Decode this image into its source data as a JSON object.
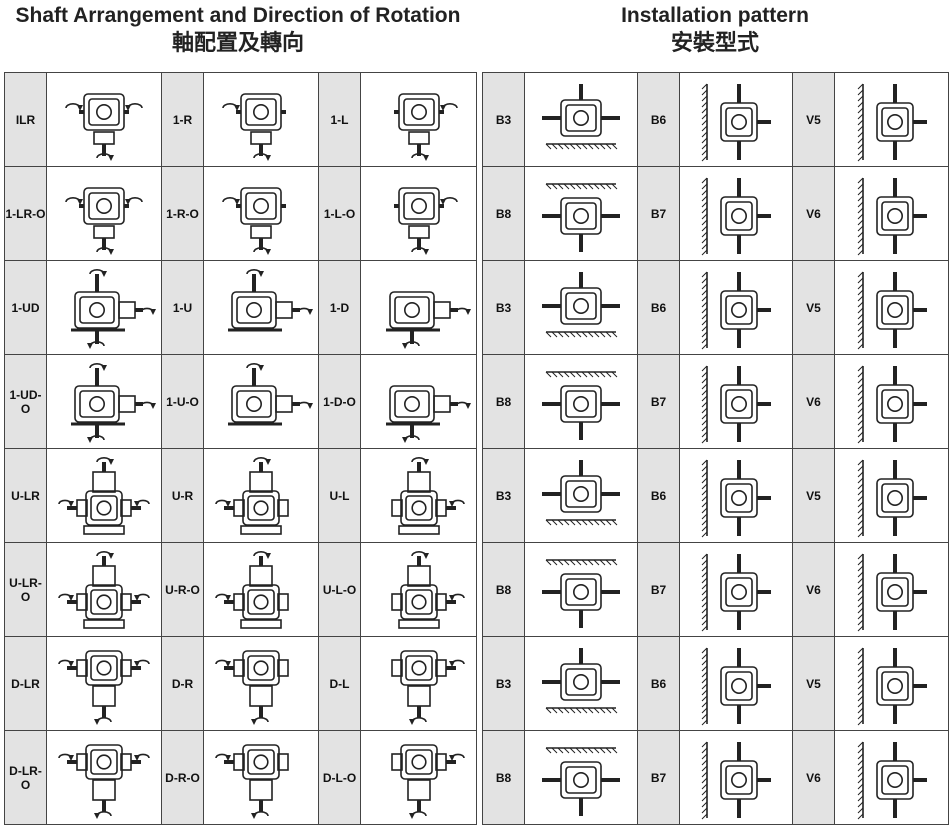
{
  "left": {
    "title_en": "Shaft Arrangement and Direction of Rotation",
    "title_zh": "軸配置及轉向",
    "rows": [
      [
        {
          "label": "ILR",
          "icon": "gearbox-rot-icon",
          "v": "a"
        },
        {
          "label": "1-R",
          "icon": "gearbox-rot-icon",
          "v": "b"
        },
        {
          "label": "1-L",
          "icon": "gearbox-rot-icon",
          "v": "c"
        }
      ],
      [
        {
          "label": "1-LR-O",
          "icon": "gearbox-rot-icon",
          "v": "a"
        },
        {
          "label": "1-R-O",
          "icon": "gearbox-rot-icon",
          "v": "b"
        },
        {
          "label": "1-L-O",
          "icon": "gearbox-rot-icon",
          "v": "c"
        }
      ],
      [
        {
          "label": "1-UD",
          "icon": "gearbox-side-rot-icon",
          "v": "a"
        },
        {
          "label": "1-U",
          "icon": "gearbox-side-rot-icon",
          "v": "b"
        },
        {
          "label": "1-D",
          "icon": "gearbox-side-rot-icon",
          "v": "c"
        }
      ],
      [
        {
          "label": "1-UD-O",
          "icon": "gearbox-side-rot-icon",
          "v": "a"
        },
        {
          "label": "1-U-O",
          "icon": "gearbox-side-rot-icon",
          "v": "b"
        },
        {
          "label": "1-D-O",
          "icon": "gearbox-side-rot-icon",
          "v": "c"
        }
      ],
      [
        {
          "label": "U-LR",
          "icon": "gearbox-tower-rot-icon",
          "v": "a"
        },
        {
          "label": "U-R",
          "icon": "gearbox-tower-rot-icon",
          "v": "b"
        },
        {
          "label": "U-L",
          "icon": "gearbox-tower-rot-icon",
          "v": "c"
        }
      ],
      [
        {
          "label": "U-LR-O",
          "icon": "gearbox-tower-rot-icon",
          "v": "a"
        },
        {
          "label": "U-R-O",
          "icon": "gearbox-tower-rot-icon",
          "v": "b"
        },
        {
          "label": "U-L-O",
          "icon": "gearbox-tower-rot-icon",
          "v": "c"
        }
      ],
      [
        {
          "label": "D-LR",
          "icon": "gearbox-inverted-rot-icon",
          "v": "a"
        },
        {
          "label": "D-R",
          "icon": "gearbox-inverted-rot-icon",
          "v": "b"
        },
        {
          "label": "D-L",
          "icon": "gearbox-inverted-rot-icon",
          "v": "c"
        }
      ],
      [
        {
          "label": "D-LR-O",
          "icon": "gearbox-inverted-rot-icon",
          "v": "a"
        },
        {
          "label": "D-R-O",
          "icon": "gearbox-inverted-rot-icon",
          "v": "b"
        },
        {
          "label": "D-L-O",
          "icon": "gearbox-inverted-rot-icon",
          "v": "c"
        }
      ]
    ]
  },
  "right": {
    "title_en": "Installation pattern",
    "title_zh": "安裝型式",
    "rows": [
      [
        {
          "label": "B3",
          "icon": "floor-mount-icon"
        },
        {
          "label": "B6",
          "icon": "wall-mount-left-icon"
        },
        {
          "label": "V5",
          "icon": "wall-mount-left-icon"
        }
      ],
      [
        {
          "label": "B8",
          "icon": "ceiling-mount-icon"
        },
        {
          "label": "B7",
          "icon": "wall-mount-left-icon"
        },
        {
          "label": "V6",
          "icon": "wall-mount-left-icon"
        }
      ],
      [
        {
          "label": "B3",
          "icon": "floor-mount-icon"
        },
        {
          "label": "B6",
          "icon": "wall-mount-left-icon"
        },
        {
          "label": "V5",
          "icon": "wall-mount-left-icon"
        }
      ],
      [
        {
          "label": "B8",
          "icon": "ceiling-mount-icon"
        },
        {
          "label": "B7",
          "icon": "wall-mount-left-icon"
        },
        {
          "label": "V6",
          "icon": "wall-mount-left-icon"
        }
      ],
      [
        {
          "label": "B3",
          "icon": "floor-mount-icon"
        },
        {
          "label": "B6",
          "icon": "wall-mount-left-icon"
        },
        {
          "label": "V5",
          "icon": "wall-mount-left-icon"
        }
      ],
      [
        {
          "label": "B8",
          "icon": "ceiling-mount-icon"
        },
        {
          "label": "B7",
          "icon": "wall-mount-left-icon"
        },
        {
          "label": "V6",
          "icon": "wall-mount-left-icon"
        }
      ],
      [
        {
          "label": "B3",
          "icon": "floor-mount-icon"
        },
        {
          "label": "B6",
          "icon": "wall-mount-left-icon"
        },
        {
          "label": "V5",
          "icon": "wall-mount-left-icon"
        }
      ],
      [
        {
          "label": "B8",
          "icon": "ceiling-mount-icon"
        },
        {
          "label": "B7",
          "icon": "wall-mount-left-icon"
        },
        {
          "label": "V6",
          "icon": "wall-mount-left-icon"
        }
      ]
    ]
  }
}
